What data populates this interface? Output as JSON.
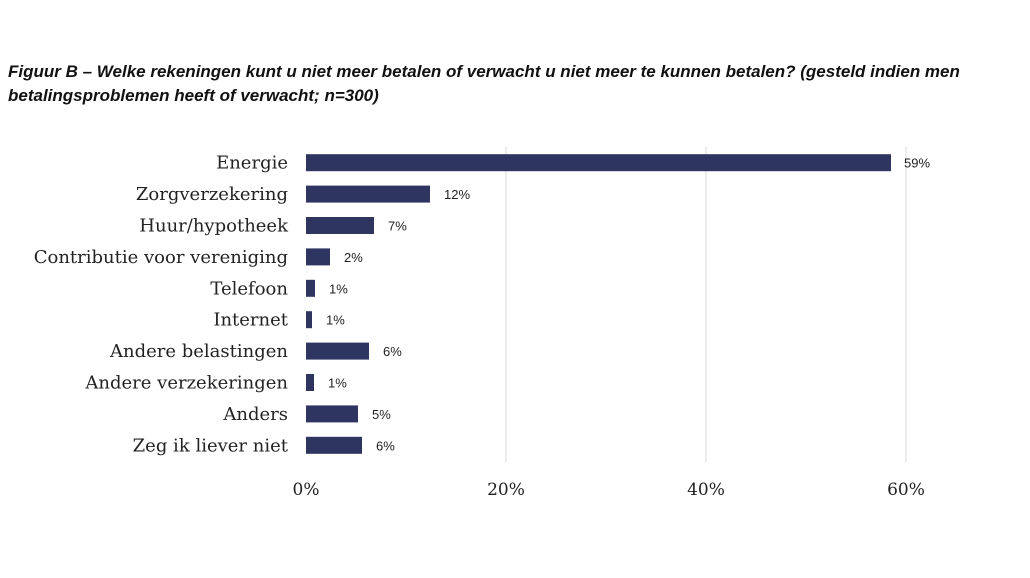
{
  "chart_data": {
    "type": "bar",
    "orientation": "horizontal",
    "title": "Figuur B – Welke rekeningen kunt u niet meer betalen of verwacht u niet meer te kunnen betalen? (gesteld indien men betalingsproblemen heeft of verwacht; n=300)",
    "categories": [
      "Energie",
      "Zorgverzekering",
      "Huur/hypotheek",
      "Contributie voor vereniging",
      "Telefoon",
      "Internet",
      "Andere belastingen",
      "Andere verzekeringen",
      "Anders",
      "Zeg ik liever niet"
    ],
    "values": [
      59,
      12,
      7,
      2,
      1,
      1,
      6,
      1,
      5,
      6
    ],
    "value_labels": [
      "59%",
      "12%",
      "7%",
      "2%",
      "1%",
      "1%",
      "6%",
      "1%",
      "5%",
      "6%"
    ],
    "bar_values_precise": [
      58.5,
      12.4,
      6.8,
      2.4,
      0.9,
      0.6,
      6.3,
      0.8,
      5.2,
      5.6
    ],
    "xlim": [
      0,
      60
    ],
    "xticks": [
      0,
      20,
      40,
      60
    ],
    "xtick_labels": [
      "0%",
      "20%",
      "40%",
      "60%"
    ],
    "xlabel": "",
    "ylabel": "",
    "grid": true,
    "legend": "none",
    "bar_color": "#2f3561",
    "grid_color": "#d9d9d9"
  }
}
